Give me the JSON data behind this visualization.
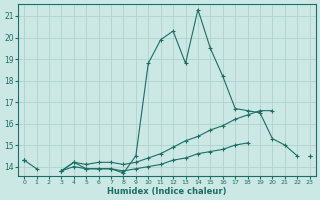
{
  "title": "",
  "xlabel": "Humidex (Indice chaleur)",
  "ylabel": "",
  "background_color": "#cce8e4",
  "grid_color": "#aacfca",
  "line_color": "#1a6e64",
  "x": [
    0,
    1,
    2,
    3,
    4,
    5,
    6,
    7,
    8,
    9,
    10,
    11,
    12,
    13,
    14,
    15,
    16,
    17,
    18,
    19,
    20,
    21,
    22,
    23
  ],
  "line1": [
    14.3,
    13.9,
    null,
    13.8,
    14.2,
    13.9,
    13.9,
    13.9,
    13.7,
    14.5,
    18.8,
    19.9,
    20.3,
    18.8,
    21.3,
    19.5,
    18.2,
    16.7,
    16.6,
    16.5,
    15.3,
    15.0,
    14.5,
    null
  ],
  "line2": [
    14.3,
    null,
    null,
    13.8,
    14.2,
    14.1,
    14.2,
    14.2,
    14.1,
    14.2,
    14.4,
    14.6,
    14.9,
    15.2,
    15.4,
    15.7,
    15.9,
    16.2,
    16.4,
    16.6,
    16.6,
    null,
    null,
    14.5
  ],
  "line3": [
    14.3,
    null,
    null,
    13.8,
    14.0,
    13.9,
    13.9,
    13.9,
    13.8,
    13.9,
    14.0,
    14.1,
    14.3,
    14.4,
    14.6,
    14.7,
    14.8,
    15.0,
    15.1,
    null,
    null,
    null,
    null,
    14.5
  ],
  "ylim": [
    13.55,
    21.55
  ],
  "yticks": [
    14,
    15,
    16,
    17,
    18,
    19,
    20,
    21
  ],
  "xticks": [
    0,
    1,
    2,
    3,
    4,
    5,
    6,
    7,
    8,
    9,
    10,
    11,
    12,
    13,
    14,
    15,
    16,
    17,
    18,
    19,
    20,
    21,
    22,
    23
  ],
  "xlim": [
    -0.5,
    23.5
  ]
}
